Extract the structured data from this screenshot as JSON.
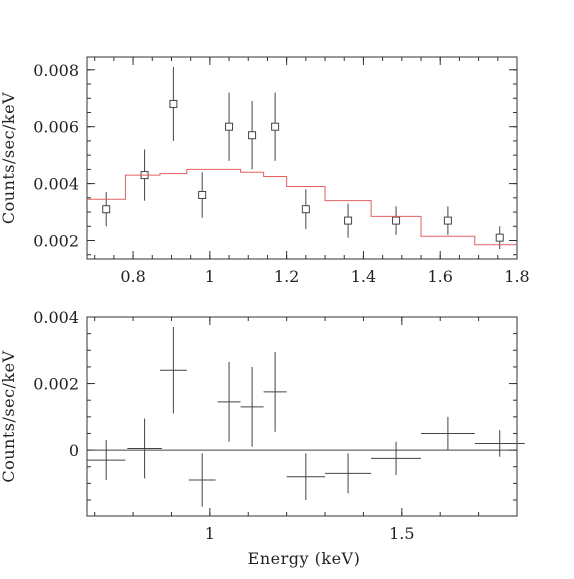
{
  "colors": {
    "axis": "#333333",
    "data": "#444444",
    "model": "#e06060",
    "background": "#ffffff"
  },
  "chart_data": [
    {
      "type": "scatter",
      "panel": "top",
      "title": "",
      "xlabel": "",
      "ylabel": "Counts/sec/keV",
      "xlim": [
        0.68,
        1.8
      ],
      "ylim": [
        0.00135,
        0.00845
      ],
      "grid": false,
      "x_ticks": [
        0.8,
        1.0,
        1.2,
        1.4,
        1.6,
        1.8
      ],
      "x_tick_labels": [
        "0.8",
        "1",
        "1.2",
        "1.4",
        "1.6",
        "1.8"
      ],
      "y_ticks": [
        0.002,
        0.004,
        0.006,
        0.008
      ],
      "y_tick_labels": [
        "0.002",
        "0.004",
        "0.006",
        "0.008"
      ],
      "series": [
        {
          "kind": "data-points",
          "marker": "open-square",
          "points": [
            {
              "x": 0.73,
              "y": 0.0031,
              "xerr": 0.0,
              "yerr": 0.0006
            },
            {
              "x": 0.83,
              "y": 0.0043,
              "xerr": 0.0,
              "yerr": 0.0009
            },
            {
              "x": 0.905,
              "y": 0.0068,
              "xerr": 0.0,
              "yerr": 0.0013
            },
            {
              "x": 0.98,
              "y": 0.0036,
              "xerr": 0.0,
              "yerr": 0.0008
            },
            {
              "x": 1.05,
              "y": 0.006,
              "xerr": 0.0,
              "yerr": 0.0012
            },
            {
              "x": 1.11,
              "y": 0.0057,
              "xerr": 0.0,
              "yerr": 0.0012
            },
            {
              "x": 1.17,
              "y": 0.006,
              "xerr": 0.0,
              "yerr": 0.0012
            },
            {
              "x": 1.25,
              "y": 0.0031,
              "xerr": 0.0,
              "yerr": 0.0007
            },
            {
              "x": 1.36,
              "y": 0.0027,
              "xerr": 0.0,
              "yerr": 0.0006
            },
            {
              "x": 1.485,
              "y": 0.0027,
              "xerr": 0.0,
              "yerr": 0.0005
            },
            {
              "x": 1.62,
              "y": 0.0027,
              "xerr": 0.0,
              "yerr": 0.0005
            },
            {
              "x": 1.755,
              "y": 0.0021,
              "xerr": 0.0,
              "yerr": 0.0004
            }
          ]
        },
        {
          "kind": "model-step",
          "bins": [
            {
              "x0": 0.68,
              "x1": 0.78,
              "y": 0.00345
            },
            {
              "x0": 0.78,
              "x1": 0.87,
              "y": 0.0043
            },
            {
              "x0": 0.87,
              "x1": 0.94,
              "y": 0.00435
            },
            {
              "x0": 0.94,
              "x1": 1.01,
              "y": 0.0045
            },
            {
              "x0": 1.01,
              "x1": 1.08,
              "y": 0.0045
            },
            {
              "x0": 1.08,
              "x1": 1.14,
              "y": 0.0044
            },
            {
              "x0": 1.14,
              "x1": 1.2,
              "y": 0.00425
            },
            {
              "x0": 1.2,
              "x1": 1.3,
              "y": 0.0039
            },
            {
              "x0": 1.3,
              "x1": 1.42,
              "y": 0.0034
            },
            {
              "x0": 1.42,
              "x1": 1.55,
              "y": 0.00285
            },
            {
              "x0": 1.55,
              "x1": 1.69,
              "y": 0.00215
            },
            {
              "x0": 1.69,
              "x1": 1.8,
              "y": 0.00185
            }
          ]
        }
      ]
    },
    {
      "type": "scatter",
      "panel": "bottom",
      "title": "",
      "xlabel": "Energy (keV)",
      "ylabel": "Counts/sec/keV",
      "xlim": [
        0.68,
        1.8
      ],
      "ylim": [
        -0.00198,
        0.004
      ],
      "grid": false,
      "x_ticks": [
        1.0,
        1.5
      ],
      "x_tick_labels": [
        "1",
        "1.5"
      ],
      "y_ticks": [
        0.0,
        0.002,
        0.004
      ],
      "y_tick_labels": [
        "0",
        "0.002",
        "0.004"
      ],
      "zero_line": 0,
      "series": [
        {
          "kind": "residuals",
          "marker": "cross",
          "points": [
            {
              "x": 0.73,
              "y": -0.0003,
              "xerr": 0.05,
              "yerr": 0.0006
            },
            {
              "x": 0.83,
              "y": 5e-05,
              "xerr": 0.045,
              "yerr": 0.0009
            },
            {
              "x": 0.905,
              "y": 0.0024,
              "xerr": 0.035,
              "yerr": 0.0013
            },
            {
              "x": 0.98,
              "y": -0.0009,
              "xerr": 0.035,
              "yerr": 0.0008
            },
            {
              "x": 1.05,
              "y": 0.00145,
              "xerr": 0.03,
              "yerr": 0.0012
            },
            {
              "x": 1.11,
              "y": 0.0013,
              "xerr": 0.03,
              "yerr": 0.0012
            },
            {
              "x": 1.17,
              "y": 0.00175,
              "xerr": 0.03,
              "yerr": 0.0012
            },
            {
              "x": 1.25,
              "y": -0.0008,
              "xerr": 0.05,
              "yerr": 0.0007
            },
            {
              "x": 1.36,
              "y": -0.0007,
              "xerr": 0.06,
              "yerr": 0.0006
            },
            {
              "x": 1.485,
              "y": -0.00025,
              "xerr": 0.065,
              "yerr": 0.0005
            },
            {
              "x": 1.62,
              "y": 0.0005,
              "xerr": 0.07,
              "yerr": 0.0005
            },
            {
              "x": 1.755,
              "y": 0.0002,
              "xerr": 0.065,
              "yerr": 0.0004
            }
          ]
        }
      ]
    }
  ]
}
